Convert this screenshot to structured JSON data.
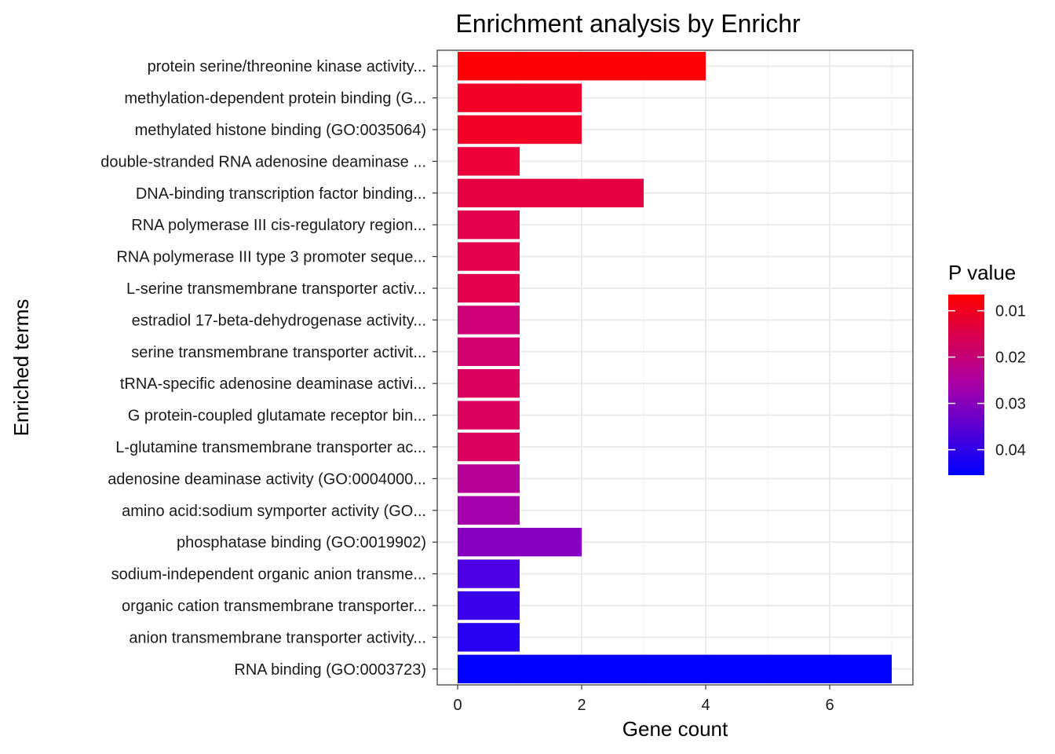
{
  "chart_data": {
    "type": "bar",
    "orientation": "horizontal",
    "title": "Enrichment analysis by Enrichr",
    "xlabel": "Gene count",
    "ylabel": "Enriched terms",
    "xlim": [
      0,
      7.35
    ],
    "xticks": [
      0,
      2,
      4,
      6
    ],
    "grid": true,
    "categories": [
      "protein serine/threonine kinase activity...",
      "methylation-dependent protein binding (G...",
      "methylated histone binding (GO:0035064)",
      "double-stranded RNA adenosine deaminase ...",
      "DNA-binding transcription factor binding...",
      "RNA polymerase III cis-regulatory region...",
      "RNA polymerase III type 3 promoter seque...",
      "L-serine transmembrane transporter activ...",
      "estradiol 17-beta-dehydrogenase activity...",
      "serine transmembrane transporter activit...",
      "tRNA-specific adenosine deaminase activi...",
      "G protein-coupled glutamate receptor bin...",
      "L-glutamine transmembrane transporter ac...",
      "adenosine deaminase activity (GO:0004000...",
      "amino acid:sodium symporter activity (GO...",
      "phosphatase binding (GO:0019902)",
      "sodium-independent organic anion transme...",
      "organic cation transmembrane transporter...",
      "anion transmembrane transporter activity...",
      "RNA binding (GO:0003723)"
    ],
    "values": [
      4,
      2,
      2,
      1,
      3,
      1,
      1,
      1,
      1,
      1,
      1,
      1,
      1,
      1,
      1,
      2,
      1,
      1,
      1,
      7
    ],
    "pvalues": [
      0.0071,
      0.0105,
      0.0105,
      0.0125,
      0.0135,
      0.0145,
      0.0145,
      0.0145,
      0.0195,
      0.0185,
      0.0165,
      0.0165,
      0.0165,
      0.0235,
      0.0265,
      0.0305,
      0.0375,
      0.0395,
      0.0415,
      0.0505
    ],
    "legend": {
      "title": "P value",
      "position": "right",
      "breaks": [
        0.01,
        0.02,
        0.03,
        0.04
      ],
      "labels": [
        "0.01",
        "0.02",
        "0.03",
        "0.04"
      ],
      "range": [
        0.0065,
        0.0455
      ],
      "low_color": "#FF0000",
      "high_color": "#0000FF"
    }
  }
}
